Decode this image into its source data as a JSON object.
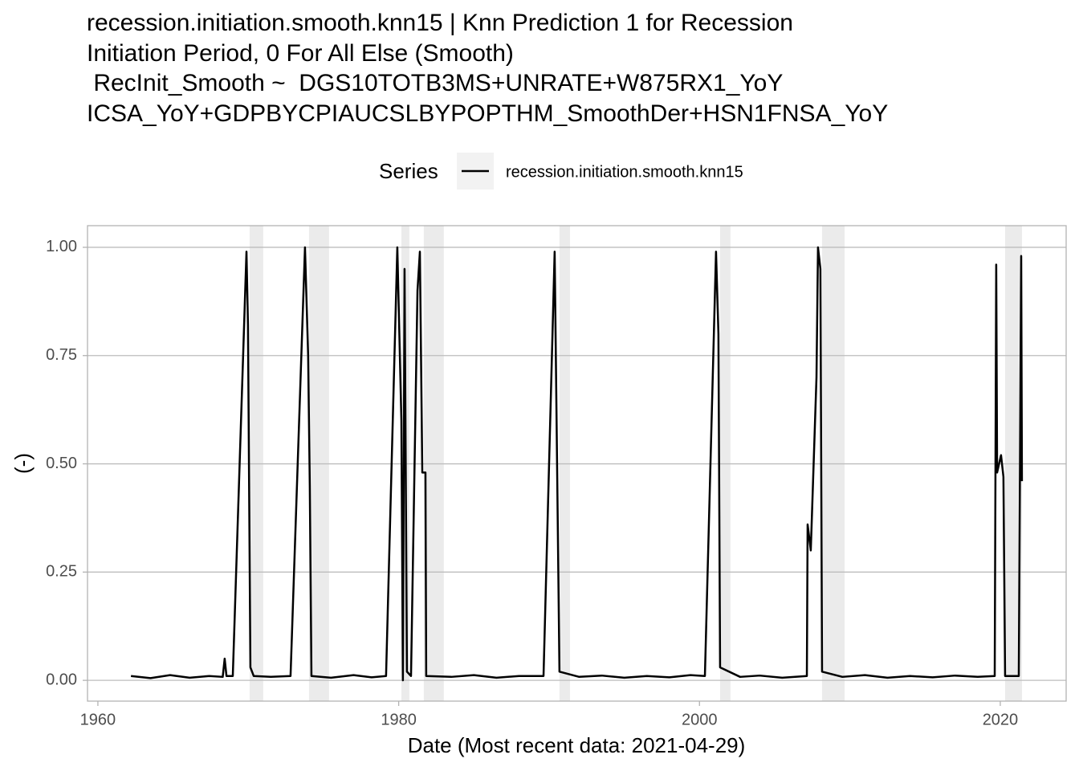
{
  "chart_data": {
    "type": "line",
    "title": [
      "recession.initiation.smooth.knn15 | Knn Prediction 1 for Recession",
      "Initiation Period, 0 For All Else (Smooth)",
      " RecInit_Smooth ~  DGS10TOTB3MS+UNRATE+W875RX1_YoY",
      "ICSA_YoY+GDPBYCPIAUCSLBYPOPTHM_SmoothDer+HSN1FNSA_YoY"
    ],
    "legend_title": "Series",
    "xlabel": "Date (Most recent data: 2021-04-29)",
    "ylabel": "(-)",
    "xlim": [
      1959.31,
      2024.38
    ],
    "xticks": [
      1960,
      1980,
      2000,
      2020
    ],
    "ylim": [
      -0.048,
      1.05
    ],
    "yticks": [
      {
        "value": 0,
        "label": "0.00"
      },
      {
        "value": 0.25,
        "label": "0.25"
      },
      {
        "value": 0.5,
        "label": "0.50"
      },
      {
        "value": 0.75,
        "label": "0.75"
      },
      {
        "value": 1,
        "label": "1.00"
      }
    ],
    "grid": true,
    "shade_color": "#ebebeb",
    "shaded_regions": [
      [
        1970.09,
        1970.99
      ],
      [
        1974.04,
        1975.37
      ],
      [
        1980.18,
        1980.71
      ],
      [
        1981.67,
        1983.0
      ],
      [
        1990.69,
        1991.39
      ],
      [
        2001.37,
        2002.06
      ],
      [
        2008.15,
        2009.65
      ],
      [
        2020.32,
        2021.44
      ]
    ],
    "x": [
      1962.2,
      1963.5,
      1964.8,
      1966.1,
      1967.4,
      1968.3,
      1968.43,
      1968.55,
      1968.97,
      1969.88,
      1969.98,
      1970.14,
      1970.36,
      1971.5,
      1972.81,
      1973.77,
      1973.98,
      1974.09,
      1974.2,
      1975.5,
      1977.0,
      1978.2,
      1979.16,
      1979.91,
      1980.18,
      1980.28,
      1980.39,
      1980.55,
      1980.82,
      1981.25,
      1981.41,
      1981.57,
      1981.78,
      1981.83,
      1983.5,
      1985.0,
      1986.5,
      1988.0,
      1989.63,
      1990.37,
      1990.69,
      1992.0,
      1993.5,
      1995.0,
      1996.5,
      1998.0,
      1999.4,
      2000.36,
      2001.1,
      2001.26,
      2001.37,
      2002.7,
      2004.0,
      2005.5,
      2007.14,
      2007.19,
      2007.4,
      2007.78,
      2007.88,
      2008.04,
      2008.15,
      2009.5,
      2011.0,
      2012.5,
      2014.0,
      2015.5,
      2017.0,
      2018.5,
      2019.63,
      2019.73,
      2019.79,
      2020.05,
      2020.21,
      2020.32,
      2021.23,
      2021.39,
      2021.44
    ],
    "series": [
      {
        "name": "recession.initiation.smooth.knn15",
        "color": "#000000",
        "values": [
          0.01,
          0.005,
          0.012,
          0.006,
          0.01,
          0.008,
          0.05,
          0.01,
          0.01,
          0.99,
          0.82,
          0.03,
          0.01,
          0.008,
          0.01,
          1.0,
          0.75,
          0.45,
          0.01,
          0.006,
          0.012,
          0.007,
          0.01,
          1.0,
          0.6,
          0.0,
          0.95,
          0.02,
          0.01,
          0.9,
          0.99,
          0.48,
          0.48,
          0.01,
          0.008,
          0.012,
          0.006,
          0.01,
          0.01,
          0.99,
          0.02,
          0.008,
          0.011,
          0.006,
          0.01,
          0.007,
          0.012,
          0.01,
          0.99,
          0.8,
          0.03,
          0.008,
          0.011,
          0.006,
          0.01,
          0.36,
          0.3,
          0.7,
          1.0,
          0.95,
          0.02,
          0.008,
          0.012,
          0.006,
          0.01,
          0.007,
          0.011,
          0.008,
          0.01,
          0.96,
          0.48,
          0.52,
          0.47,
          0.01,
          0.01,
          0.98,
          0.46
        ]
      }
    ]
  }
}
